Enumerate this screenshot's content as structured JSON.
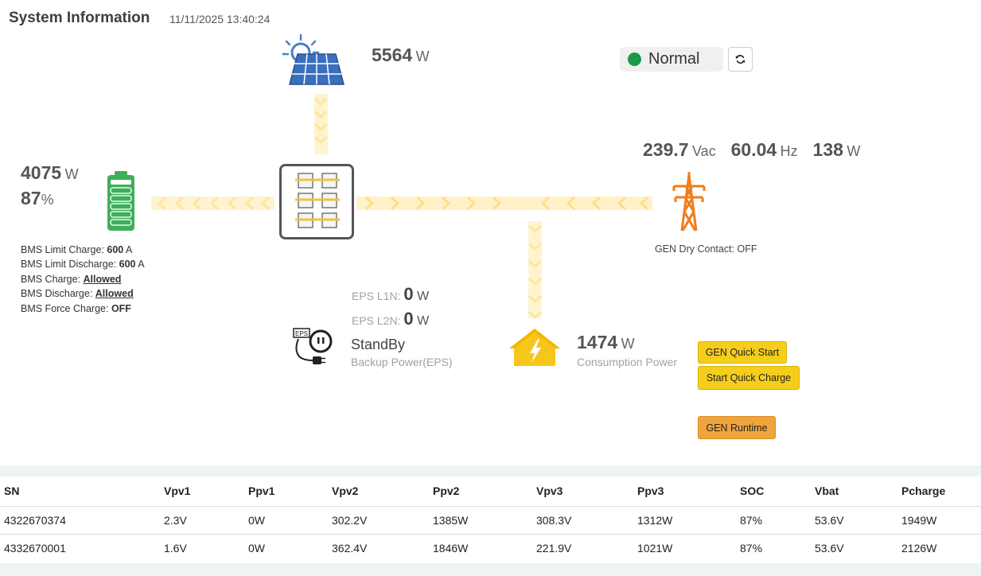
{
  "header": {
    "title": "System Information",
    "timestamp": "11/11/2025 13:40:24"
  },
  "solar": {
    "power": "5564",
    "unit": "W"
  },
  "status": {
    "label": "Normal",
    "color": "#1a9a4a",
    "refresh_icon": "refresh-icon"
  },
  "grid": {
    "voltage": "239.7",
    "voltage_unit": "Vac",
    "frequency": "60.04",
    "frequency_unit": "Hz",
    "power": "138",
    "power_unit": "W",
    "dry_contact": "GEN Dry Contact: OFF"
  },
  "battery": {
    "power": "4075",
    "power_unit": "W",
    "soc": "87",
    "soc_unit": "%",
    "bms": [
      {
        "label": "BMS Limit Charge: ",
        "value": "600",
        "unit": " A"
      },
      {
        "label": "BMS Limit Discharge: ",
        "value": "600",
        "unit": " A"
      },
      {
        "label": "BMS Charge: ",
        "value": "Allowed",
        "unit": ""
      },
      {
        "label": "BMS Discharge: ",
        "value": "Allowed",
        "unit": ""
      },
      {
        "label": "BMS Force Charge: ",
        "value": "OFF",
        "unit": ""
      }
    ]
  },
  "eps": {
    "l1n_label": "EPS L1N: ",
    "l1n_value": "0",
    "l1n_unit": "W",
    "l2n_label": "EPS L2N: ",
    "l2n_value": "0",
    "l2n_unit": "W",
    "state": "StandBy",
    "subtitle": "Backup Power(EPS)",
    "icon_text": "EPS"
  },
  "consumption": {
    "power": "1474",
    "unit": "W",
    "label": "Consumption Power"
  },
  "buttons": {
    "gen_quick_start": "GEN Quick Start",
    "start_quick_charge": "Start Quick Charge",
    "gen_runtime": "GEN Runtime"
  },
  "table": {
    "headers": [
      "SN",
      "Vpv1",
      "Ppv1",
      "Vpv2",
      "Ppv2",
      "Vpv3",
      "Ppv3",
      "SOC",
      "Vbat",
      "Pcharge"
    ],
    "rows": [
      [
        "4322670374",
        "2.3V",
        "0W",
        "302.2V",
        "1385W",
        "308.3V",
        "1312W",
        "87%",
        "53.6V",
        "1949W"
      ],
      [
        "4332670001",
        "1.6V",
        "0W",
        "362.4V",
        "1846W",
        "221.9V",
        "1021W",
        "87%",
        "53.6V",
        "2126W"
      ]
    ]
  }
}
